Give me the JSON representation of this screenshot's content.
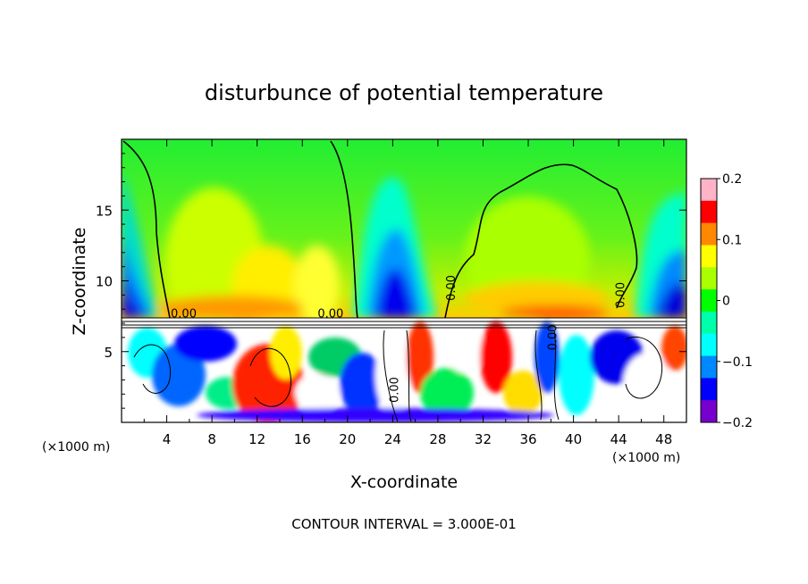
{
  "chart_data": {
    "type": "heatmap",
    "title": "disturbunce of potential temperature",
    "xlabel": "X-coordinate",
    "ylabel": "Z-coordinate",
    "x_unit": "(×1000 m)",
    "x_unit_right": "(×1000 m)",
    "footer": "CONTOUR INTERVAL = 3.000E-01",
    "xlim": [
      0,
      50
    ],
    "ylim": [
      0,
      20
    ],
    "x_ticks": [
      "4",
      "8",
      "12",
      "16",
      "20",
      "24",
      "28",
      "32",
      "36",
      "40",
      "44",
      "48"
    ],
    "x_tick_values": [
      4,
      8,
      12,
      16,
      20,
      24,
      28,
      32,
      36,
      40,
      44,
      48
    ],
    "y_ticks": [
      "5",
      "10",
      "15"
    ],
    "y_tick_values": [
      5,
      10,
      15
    ],
    "colorbar": {
      "min": -0.2,
      "max": 0.2,
      "ticks": [
        "0.2",
        "0.1",
        "0",
        "−0.1",
        "−0.2"
      ],
      "tick_values": [
        0.2,
        0.1,
        0,
        -0.1,
        -0.2
      ],
      "colors": [
        "#ffb3c6",
        "#ff0000",
        "#ff8800",
        "#ffff00",
        "#aaff00",
        "#00ff00",
        "#00ffaa",
        "#00ffff",
        "#0088ff",
        "#0000ff",
        "#7700cc"
      ]
    },
    "contour_labels": [
      {
        "text": "0.00",
        "x": 5.5,
        "y": 7.4,
        "angle": 0
      },
      {
        "text": "0.00",
        "x": 18.5,
        "y": 7.4,
        "angle": 0
      },
      {
        "text": "0.00",
        "x": 29.5,
        "y": 9.5,
        "angle": -90
      },
      {
        "text": "0.00",
        "x": 44.5,
        "y": 9.0,
        "angle": -90
      },
      {
        "text": "0.00",
        "x": 24.5,
        "y": 2.3,
        "angle": -90
      },
      {
        "text": "0.00",
        "x": 38.5,
        "y": 6.0,
        "angle": -90
      }
    ]
  }
}
